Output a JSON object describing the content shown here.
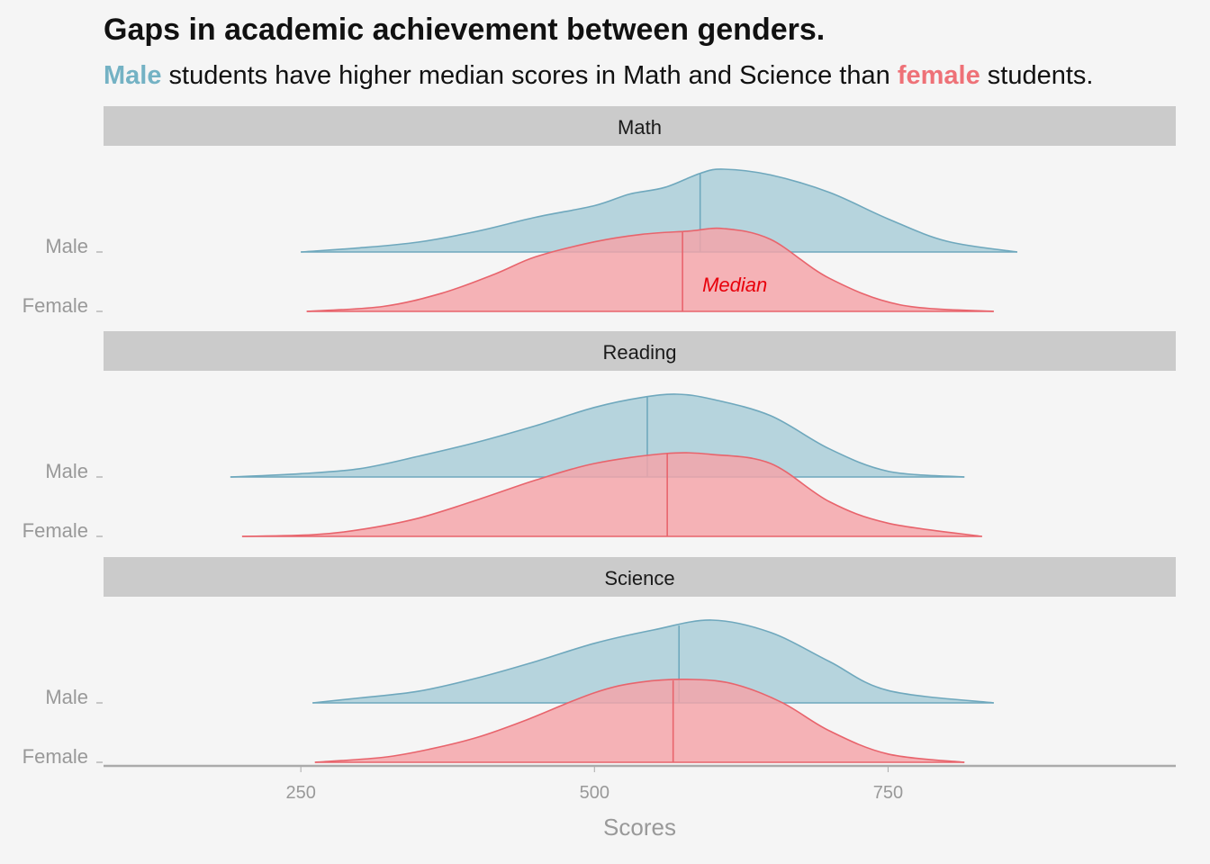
{
  "header": {
    "title": "Gaps in academic achievement between genders.",
    "subtitle_male": "Male",
    "subtitle_mid": " students have higher median scores in Math and Science than ",
    "subtitle_female": "female",
    "subtitle_end": " students."
  },
  "colors": {
    "male_fill": "#a8cdd8",
    "male_line": "#6fa8bd",
    "female_fill": "#f5a3a8",
    "female_line": "#e8646c",
    "male_highlight": "#74b2c4",
    "female_highlight": "#ee7177",
    "strip_bg": "#cbcbcb",
    "annotation": "#e8000b",
    "axis_text": "#999999",
    "background": "#f5f5f5"
  },
  "chart_data": {
    "type": "area",
    "subtype": "ridgeline-density",
    "xlabel": "Scores",
    "ylabel": "",
    "x_ticks": [
      250,
      500,
      750
    ],
    "xlim": [
      82,
      995
    ],
    "legend": "none",
    "grid": false,
    "annotation": {
      "text": "Median",
      "panel": "Math",
      "group": "Female"
    },
    "panels": [
      {
        "name": "Math",
        "groups": [
          {
            "name": "Male",
            "color_key": "male",
            "median": 590,
            "x": [
              250,
              300,
              350,
              400,
              450,
              500,
              530,
              560,
              590,
              610,
              650,
              700,
              750,
              800,
              860
            ],
            "density": [
              0.0,
              0.05,
              0.12,
              0.25,
              0.42,
              0.56,
              0.7,
              0.78,
              0.95,
              1.0,
              0.93,
              0.72,
              0.4,
              0.13,
              0.0
            ]
          },
          {
            "name": "Female",
            "color_key": "female",
            "median": 575,
            "x": [
              255,
              320,
              370,
              415,
              450,
              500,
              540,
              580,
              610,
              650,
              700,
              760,
              840
            ],
            "density": [
              0.0,
              0.06,
              0.22,
              0.45,
              0.66,
              0.84,
              0.93,
              0.97,
              1.0,
              0.87,
              0.4,
              0.08,
              0.0
            ]
          }
        ]
      },
      {
        "name": "Reading",
        "groups": [
          {
            "name": "Male",
            "color_key": "male",
            "median": 545,
            "x": [
              190,
              250,
              300,
              350,
              400,
              450,
              500,
              540,
              570,
              600,
              650,
              700,
              750,
              815
            ],
            "density": [
              0.0,
              0.04,
              0.1,
              0.25,
              0.42,
              0.62,
              0.84,
              0.96,
              1.0,
              0.94,
              0.74,
              0.34,
              0.07,
              0.0
            ]
          },
          {
            "name": "Female",
            "color_key": "female",
            "median": 562,
            "x": [
              200,
              260,
              300,
              350,
              400,
              450,
              500,
              560,
              600,
              650,
              700,
              750,
              830
            ],
            "density": [
              0.0,
              0.02,
              0.08,
              0.22,
              0.44,
              0.68,
              0.88,
              1.0,
              0.99,
              0.88,
              0.42,
              0.16,
              0.0
            ]
          }
        ]
      },
      {
        "name": "Science",
        "groups": [
          {
            "name": "Male",
            "color_key": "male",
            "median": 572,
            "x": [
              260,
              300,
              350,
              400,
              450,
              500,
              550,
              600,
              650,
              700,
              750,
              840
            ],
            "density": [
              0.0,
              0.06,
              0.14,
              0.3,
              0.5,
              0.72,
              0.88,
              1.0,
              0.85,
              0.5,
              0.15,
              0.0
            ]
          },
          {
            "name": "Female",
            "color_key": "female",
            "median": 567,
            "x": [
              262,
              320,
              360,
              400,
              440,
              500,
              540,
              585,
              620,
              660,
              700,
              750,
              815
            ],
            "density": [
              0.0,
              0.06,
              0.16,
              0.3,
              0.5,
              0.84,
              0.97,
              1.0,
              0.94,
              0.72,
              0.38,
              0.1,
              0.0
            ]
          }
        ]
      }
    ]
  }
}
